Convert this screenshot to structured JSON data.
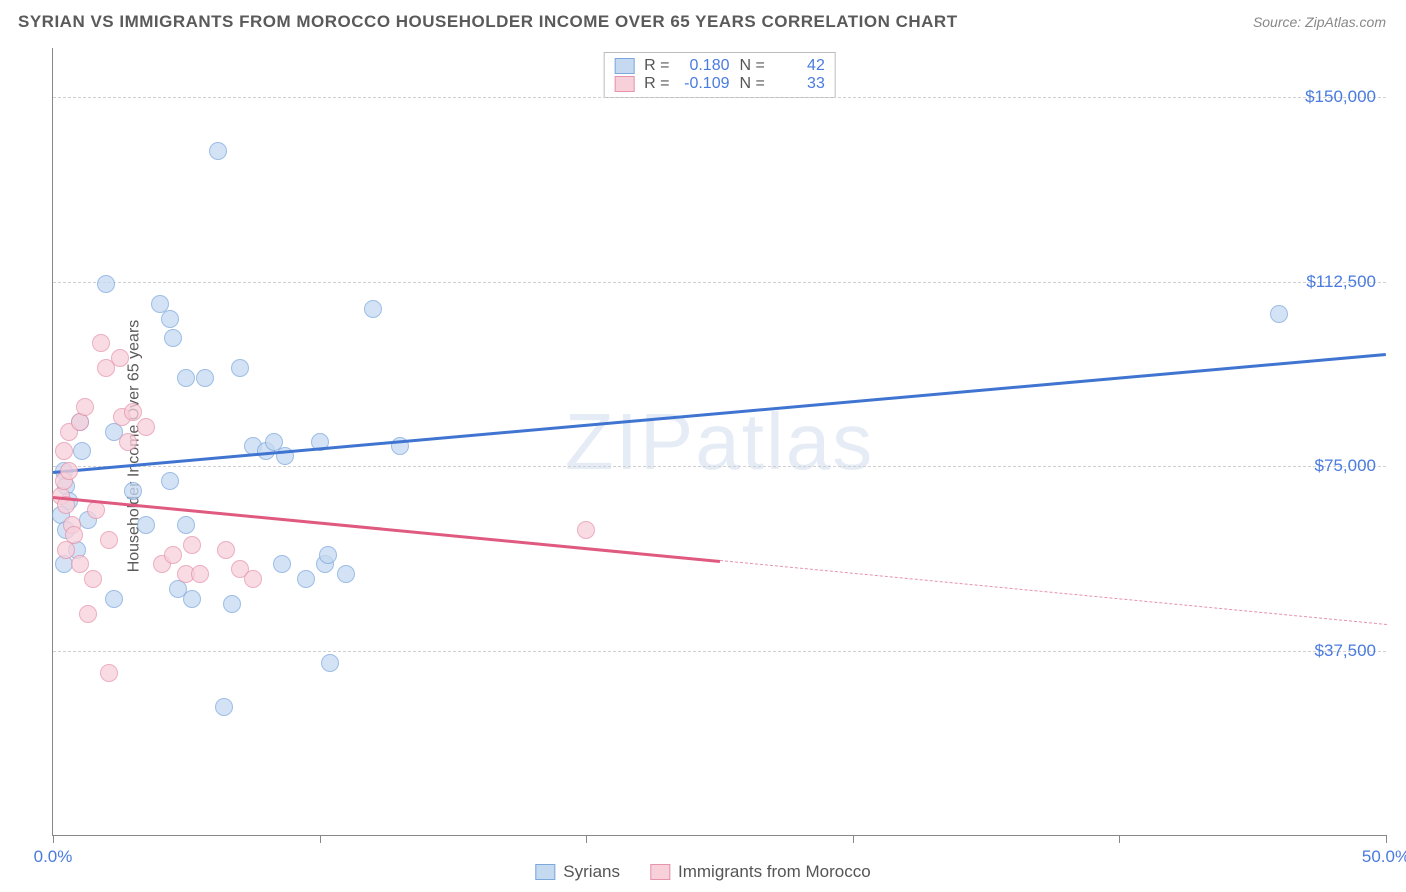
{
  "title": "SYRIAN VS IMMIGRANTS FROM MOROCCO HOUSEHOLDER INCOME OVER 65 YEARS CORRELATION CHART",
  "source": "Source: ZipAtlas.com",
  "watermark": "ZIPatlas",
  "chart": {
    "type": "scatter",
    "y_axis_label": "Householder Income Over 65 years",
    "xlim_min": 0.0,
    "xlim_max": 50.0,
    "xlim_min_label": "0.0%",
    "xlim_max_label": "50.0%",
    "xtick_positions": [
      0,
      10,
      20,
      30,
      40,
      50
    ],
    "ylim_min": 0,
    "ylim_max": 160000,
    "y_gridlines": [
      {
        "value": 37500,
        "label": "$37,500"
      },
      {
        "value": 75000,
        "label": "$75,000"
      },
      {
        "value": 112500,
        "label": "$112,500"
      },
      {
        "value": 150000,
        "label": "$150,000"
      }
    ],
    "grid_color": "#d0d0d0",
    "background_color": "#ffffff",
    "axis_color": "#888888",
    "tick_label_color": "#4a7be0",
    "axis_label_color": "#5a5a5a",
    "axis_label_fontsize": 16,
    "tick_label_fontsize": 17,
    "title_color": "#5a5a5a",
    "title_fontsize": 17,
    "series": [
      {
        "name": "Syrians",
        "marker_fill": "#c5d9f1",
        "marker_stroke": "#7ca8dd",
        "marker_radius": 9,
        "fill_opacity": 0.75,
        "line_color": "#3f74d1",
        "line_width": 2.5,
        "R": "0.180",
        "N": "42",
        "trend_x1": 0,
        "trend_y1": 74000,
        "trend_x2": 50,
        "trend_y2": 98000,
        "trend_solid_until": 50,
        "points": [
          {
            "x": 0.4,
            "y": 74000
          },
          {
            "x": 0.5,
            "y": 71000
          },
          {
            "x": 0.6,
            "y": 68000
          },
          {
            "x": 0.3,
            "y": 65000
          },
          {
            "x": 0.5,
            "y": 62000
          },
          {
            "x": 0.9,
            "y": 58000
          },
          {
            "x": 0.4,
            "y": 55000
          },
          {
            "x": 1.0,
            "y": 84000
          },
          {
            "x": 1.1,
            "y": 78000
          },
          {
            "x": 1.3,
            "y": 64000
          },
          {
            "x": 2.0,
            "y": 112000
          },
          {
            "x": 2.3,
            "y": 82000
          },
          {
            "x": 2.3,
            "y": 48000
          },
          {
            "x": 3.0,
            "y": 70000
          },
          {
            "x": 3.5,
            "y": 63000
          },
          {
            "x": 4.0,
            "y": 108000
          },
          {
            "x": 4.4,
            "y": 72000
          },
          {
            "x": 4.4,
            "y": 105000
          },
          {
            "x": 4.5,
            "y": 101000
          },
          {
            "x": 4.7,
            "y": 50000
          },
          {
            "x": 5.0,
            "y": 93000
          },
          {
            "x": 5.0,
            "y": 63000
          },
          {
            "x": 5.2,
            "y": 48000
          },
          {
            "x": 5.7,
            "y": 93000
          },
          {
            "x": 6.2,
            "y": 139000
          },
          {
            "x": 6.4,
            "y": 26000
          },
          {
            "x": 6.7,
            "y": 47000
          },
          {
            "x": 7.0,
            "y": 95000
          },
          {
            "x": 7.5,
            "y": 79000
          },
          {
            "x": 8.0,
            "y": 78000
          },
          {
            "x": 8.3,
            "y": 80000
          },
          {
            "x": 8.6,
            "y": 55000
          },
          {
            "x": 8.7,
            "y": 77000
          },
          {
            "x": 9.5,
            "y": 52000
          },
          {
            "x": 10.0,
            "y": 80000
          },
          {
            "x": 10.2,
            "y": 55000
          },
          {
            "x": 10.3,
            "y": 57000
          },
          {
            "x": 10.4,
            "y": 35000
          },
          {
            "x": 11.0,
            "y": 53000
          },
          {
            "x": 12.0,
            "y": 107000
          },
          {
            "x": 13.0,
            "y": 79000
          },
          {
            "x": 46.0,
            "y": 106000
          }
        ]
      },
      {
        "name": "Immigrants from Morocco",
        "marker_fill": "#f7d0da",
        "marker_stroke": "#e693ab",
        "marker_radius": 9,
        "fill_opacity": 0.75,
        "line_color": "#e05a80",
        "line_width": 2.5,
        "R": "-0.109",
        "N": "33",
        "trend_x1": 0,
        "trend_y1": 69000,
        "trend_x2": 50,
        "trend_y2": 43000,
        "trend_solid_until": 25,
        "points": [
          {
            "x": 0.3,
            "y": 69000
          },
          {
            "x": 0.4,
            "y": 72000
          },
          {
            "x": 0.5,
            "y": 67000
          },
          {
            "x": 0.6,
            "y": 74000
          },
          {
            "x": 0.7,
            "y": 63000
          },
          {
            "x": 0.8,
            "y": 61000
          },
          {
            "x": 0.5,
            "y": 58000
          },
          {
            "x": 0.4,
            "y": 78000
          },
          {
            "x": 0.6,
            "y": 82000
          },
          {
            "x": 1.0,
            "y": 84000
          },
          {
            "x": 1.0,
            "y": 55000
          },
          {
            "x": 1.2,
            "y": 87000
          },
          {
            "x": 1.3,
            "y": 45000
          },
          {
            "x": 1.5,
            "y": 52000
          },
          {
            "x": 1.6,
            "y": 66000
          },
          {
            "x": 1.8,
            "y": 100000
          },
          {
            "x": 2.0,
            "y": 95000
          },
          {
            "x": 2.1,
            "y": 60000
          },
          {
            "x": 2.1,
            "y": 33000
          },
          {
            "x": 2.5,
            "y": 97000
          },
          {
            "x": 2.6,
            "y": 85000
          },
          {
            "x": 2.8,
            "y": 80000
          },
          {
            "x": 3.0,
            "y": 86000
          },
          {
            "x": 3.5,
            "y": 83000
          },
          {
            "x": 4.1,
            "y": 55000
          },
          {
            "x": 4.5,
            "y": 57000
          },
          {
            "x": 5.0,
            "y": 53000
          },
          {
            "x": 5.2,
            "y": 59000
          },
          {
            "x": 5.5,
            "y": 53000
          },
          {
            "x": 6.5,
            "y": 58000
          },
          {
            "x": 7.0,
            "y": 54000
          },
          {
            "x": 7.5,
            "y": 52000
          },
          {
            "x": 20.0,
            "y": 62000
          }
        ]
      }
    ],
    "stats_legend_labels": {
      "R": "R =",
      "N": "N ="
    },
    "bottom_legend_color": "#555555"
  }
}
